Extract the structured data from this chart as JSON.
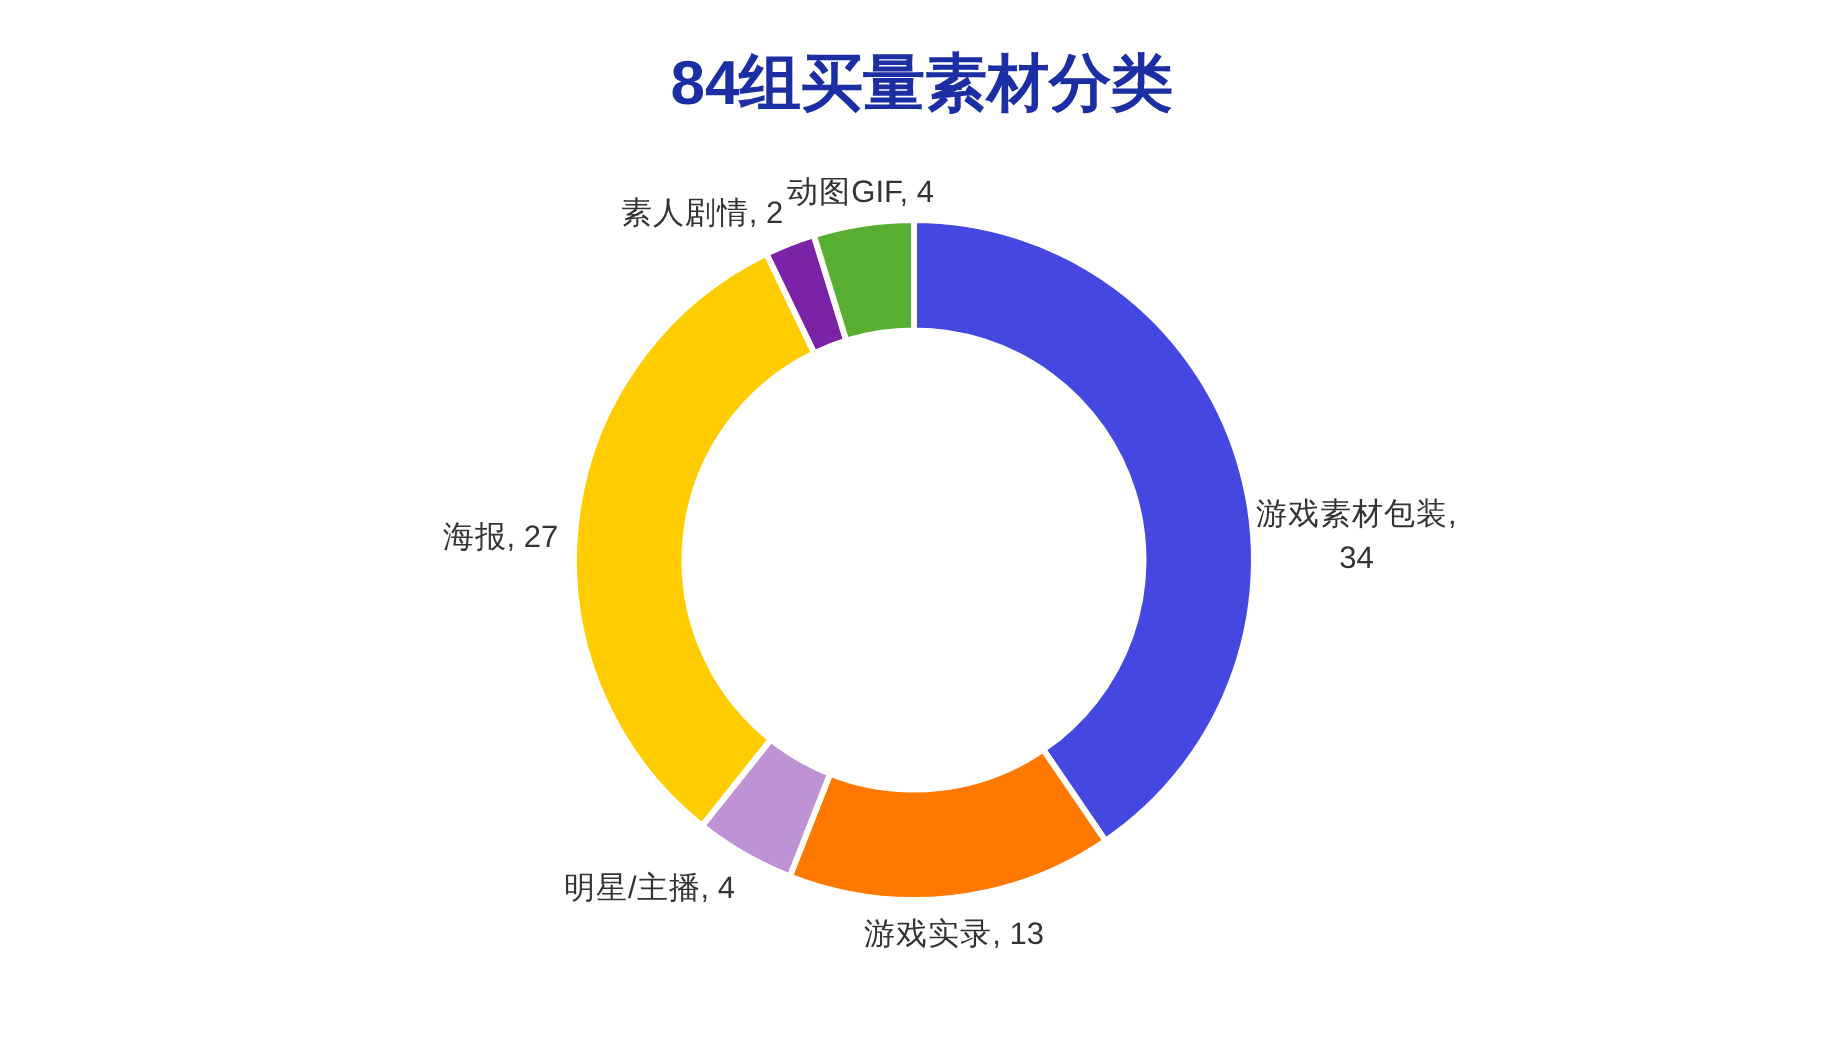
{
  "chart_data": {
    "type": "donut",
    "title": "84组买量素材分类",
    "categories": [
      "游戏素材包装",
      "游戏实录",
      "明星/主播",
      "海报",
      "素人剧情",
      "动图GIF"
    ],
    "values": [
      34,
      13,
      4,
      27,
      2,
      4
    ],
    "colors": [
      "#4447e0",
      "#ff7800",
      "#bf92d6",
      "#ffcc00",
      "#7b23a6",
      "#58ae30"
    ],
    "value_labels": [
      ", 34",
      ", 13",
      ", 4",
      ", 27",
      ", 2",
      ", 4"
    ]
  }
}
